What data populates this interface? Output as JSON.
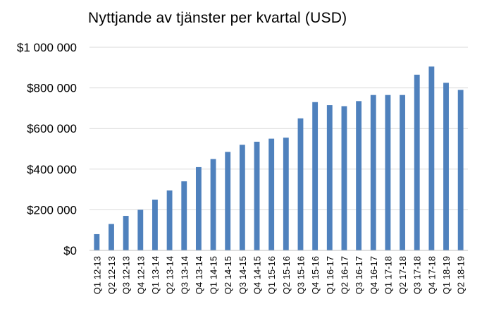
{
  "chart_data": {
    "type": "bar",
    "title": "Nyttjande av tjänster per kvartal (USD)",
    "xlabel": "",
    "ylabel": "",
    "ylim": [
      0,
      1000000
    ],
    "yticks": [
      0,
      200000,
      400000,
      600000,
      800000,
      1000000
    ],
    "ytick_labels": [
      "$0",
      "$200 000",
      "$400 000",
      "$600 000",
      "$800 000",
      "$1 000 000"
    ],
    "grid": true,
    "legend": "none",
    "bar_color": "#4f81bd",
    "grid_color": "#d9d9d9",
    "categories": [
      "Q1 12-13",
      "Q2 12-13",
      "Q3 12-13",
      "Q4 12-13",
      "Q1 13-14",
      "Q2 13-14",
      "Q3 13-14",
      "Q4 13-14",
      "Q1 14-15",
      "Q2 14-15",
      "Q3 14-15",
      "Q4 14-15",
      "Q1 15-16",
      "Q2 15-16",
      "Q3 15-16",
      "Q4 15-16",
      "Q1 16-17",
      "Q2 16-17",
      "Q3 16-17",
      "Q4 16-17",
      "Q1 17-18",
      "Q2 17-18",
      "Q3 17-18",
      "Q4 17-18",
      "Q1 18-19",
      "Q2 18-19"
    ],
    "values": [
      80000,
      130000,
      170000,
      200000,
      250000,
      295000,
      340000,
      410000,
      450000,
      485000,
      520000,
      535000,
      550000,
      555000,
      650000,
      730000,
      715000,
      710000,
      735000,
      765000,
      765000,
      765000,
      865000,
      905000,
      825000,
      790000
    ]
  }
}
